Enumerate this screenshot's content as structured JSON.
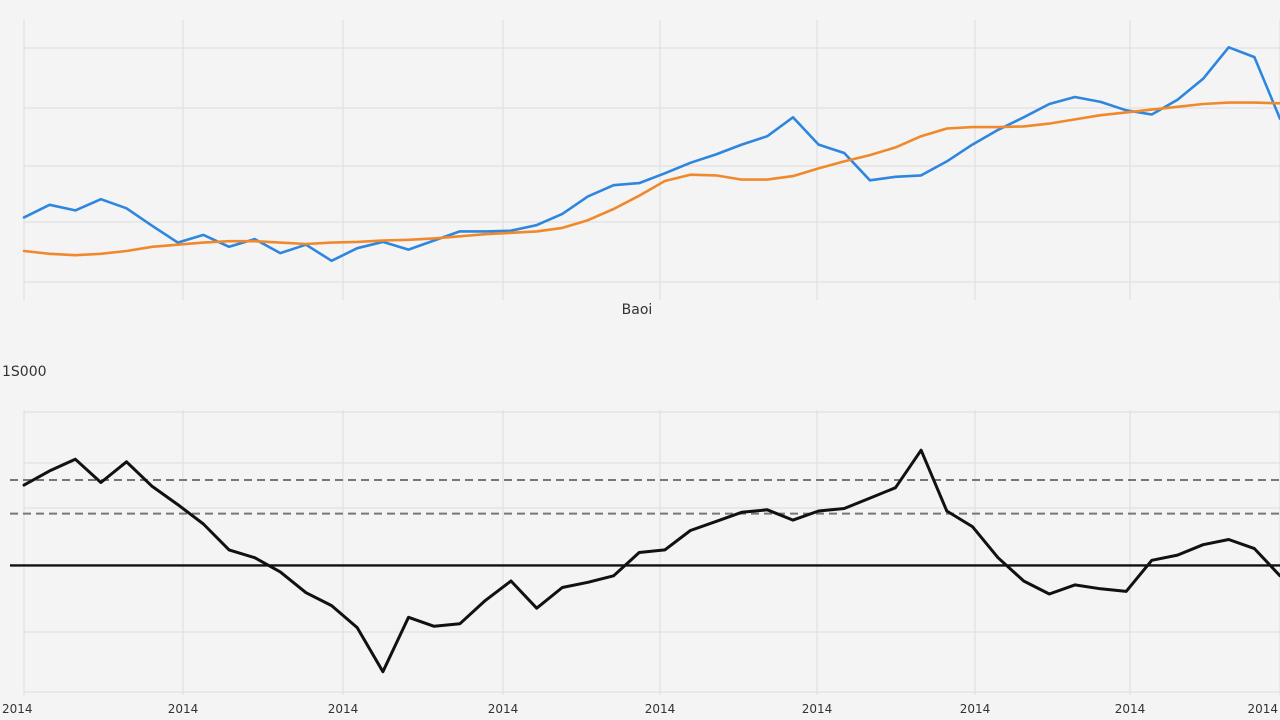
{
  "chart_data": [
    {
      "type": "line",
      "x": [
        0,
        1,
        2,
        3,
        4,
        5,
        6,
        7,
        8,
        9,
        10,
        11,
        12,
        13,
        14,
        15,
        16,
        17,
        18,
        19,
        20,
        21,
        22,
        23,
        24,
        25,
        26,
        27,
        28,
        29,
        30,
        31,
        32,
        33,
        34,
        35,
        36,
        37,
        38,
        39,
        40,
        41,
        42,
        43,
        44,
        45,
        46,
        47,
        48,
        49
      ],
      "series": [
        {
          "color": "#2e86de",
          "values": [
            2.18,
            2.36,
            2.28,
            2.44,
            2.31,
            2.06,
            1.82,
            1.93,
            1.76,
            1.87,
            1.67,
            1.79,
            1.56,
            1.74,
            1.83,
            1.72,
            1.85,
            1.98,
            1.98,
            1.99,
            2.07,
            2.23,
            2.48,
            2.64,
            2.67,
            2.81,
            2.96,
            3.08,
            3.22,
            3.34,
            3.61,
            3.22,
            3.1,
            2.71,
            2.76,
            2.78,
            2.98,
            3.22,
            3.43,
            3.61,
            3.8,
            3.9,
            3.83,
            3.71,
            3.65,
            3.86,
            4.16,
            4.61,
            4.47,
            3.59
          ]
        },
        {
          "color": "#f0892b",
          "values": [
            1.7,
            1.66,
            1.64,
            1.66,
            1.7,
            1.76,
            1.79,
            1.82,
            1.84,
            1.84,
            1.82,
            1.8,
            1.82,
            1.83,
            1.85,
            1.86,
            1.88,
            1.91,
            1.94,
            1.96,
            1.98,
            2.03,
            2.14,
            2.3,
            2.49,
            2.7,
            2.79,
            2.78,
            2.72,
            2.72,
            2.77,
            2.88,
            2.98,
            3.07,
            3.18,
            3.34,
            3.45,
            3.47,
            3.47,
            3.48,
            3.52,
            3.58,
            3.64,
            3.68,
            3.72,
            3.76,
            3.8,
            3.82,
            3.82,
            3.81
          ]
        }
      ],
      "xlabel": "",
      "ylabel": "",
      "x_ticks": [],
      "y_ticks": [],
      "ylim": [
        1.0,
        5.0
      ],
      "grid": true,
      "caption": "Baoi"
    },
    {
      "type": "line",
      "x": [
        0,
        1,
        2,
        3,
        4,
        5,
        6,
        7,
        8,
        9,
        10,
        11,
        12,
        13,
        14,
        15,
        16,
        17,
        18,
        19,
        20,
        21,
        22,
        23,
        24,
        25,
        26,
        27,
        28,
        29,
        30,
        31,
        32,
        33,
        34,
        35,
        36,
        37,
        38,
        39,
        40,
        41,
        42,
        43,
        44,
        45,
        46,
        47,
        48,
        49
      ],
      "series": [
        {
          "color": "#111111",
          "values": [
            0.62,
            0.73,
            0.82,
            0.64,
            0.8,
            0.61,
            0.47,
            0.32,
            0.12,
            0.06,
            -0.05,
            -0.21,
            -0.31,
            -0.48,
            -0.82,
            -0.4,
            -0.47,
            -0.45,
            -0.27,
            -0.12,
            -0.33,
            -0.17,
            -0.13,
            -0.08,
            0.1,
            0.12,
            0.27,
            0.34,
            0.41,
            0.43,
            0.35,
            0.42,
            0.44,
            0.52,
            0.6,
            0.89,
            0.42,
            0.3,
            0.06,
            -0.12,
            -0.22,
            -0.15,
            -0.18,
            -0.2,
            0.04,
            0.08,
            0.16,
            0.2,
            0.13,
            -0.08
          ]
        }
      ],
      "reference_lines": [
        0.0,
        0.4,
        0.66
      ],
      "reference_styles": [
        "solid",
        "dashed",
        "dashed"
      ],
      "x_ticks": [
        "2014",
        "2014",
        "2014",
        "2014",
        "2014",
        "2014",
        "2014",
        "2014",
        "2014"
      ],
      "y_ticks": [],
      "ylim": [
        -1.0,
        1.2
      ],
      "grid": true,
      "title": "1S000",
      "xlabel": "",
      "ylabel": ""
    }
  ]
}
